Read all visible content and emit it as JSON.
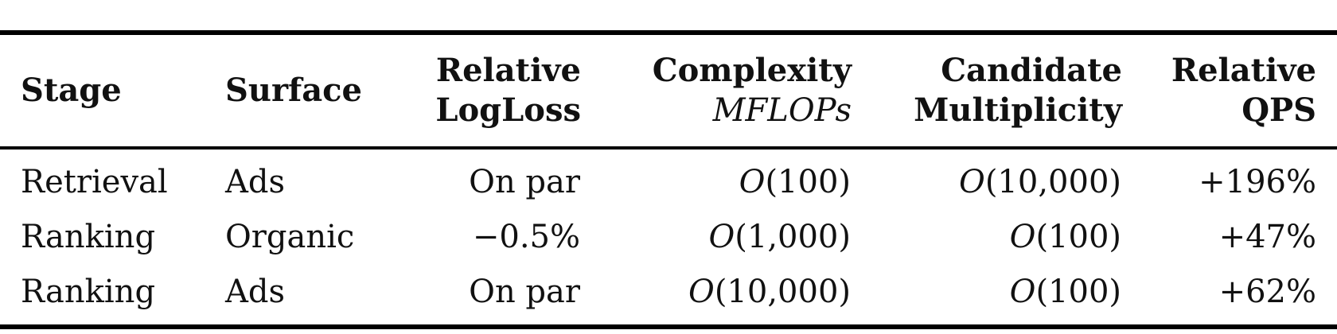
{
  "table": {
    "headers": [
      {
        "line1": "Stage",
        "line2": ""
      },
      {
        "line1": "Surface",
        "line2": ""
      },
      {
        "line1": "Relative",
        "line2": "LogLoss"
      },
      {
        "line1": "Complexity",
        "line2": "MFLOPs"
      },
      {
        "line1": "Candidate",
        "line2": "Multiplicity"
      },
      {
        "line1": "Relative",
        "line2": "QPS"
      }
    ],
    "rows": [
      {
        "stage": "Retrieval",
        "surface": "Ads",
        "logloss": "On par",
        "mflops": "(100)",
        "multiplicity": "(10,000)",
        "qps": "+196%"
      },
      {
        "stage": "Ranking",
        "surface": "Organic",
        "logloss": "−0.5%",
        "mflops": "(1,000)",
        "multiplicity": "(100)",
        "qps": "+47%"
      },
      {
        "stage": "Ranking",
        "surface": "Ads",
        "logloss": "On par",
        "mflops": "(10,000)",
        "multiplicity": "(100)",
        "qps": "+62%"
      }
    ],
    "big_o": "O"
  }
}
